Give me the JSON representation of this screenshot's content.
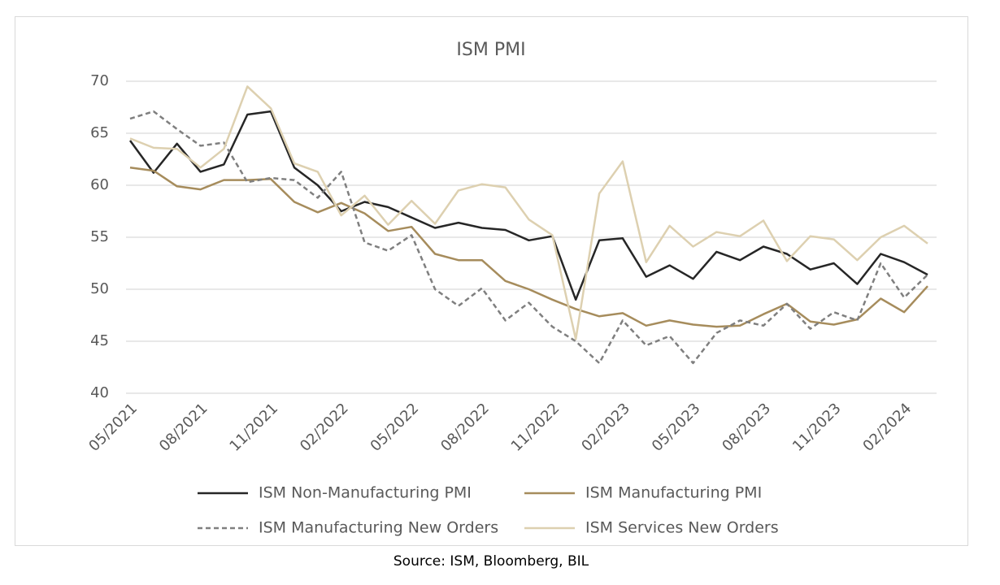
{
  "chart_data": {
    "type": "line",
    "title": "ISM PMI",
    "source": "Source: ISM, Bloomberg, BIL",
    "categories": [
      "05/2021",
      null,
      null,
      "08/2021",
      null,
      null,
      "11/2021",
      null,
      null,
      "02/2022",
      null,
      null,
      "05/2022",
      null,
      null,
      "08/2022",
      null,
      null,
      "11/2022",
      null,
      null,
      "02/2023",
      null,
      null,
      "05/2023",
      null,
      null,
      "08/2023",
      null,
      null,
      "11/2023",
      null,
      null,
      "02/2024",
      null
    ],
    "series": [
      {
        "name": "ISM Non-Manufacturing PMI",
        "color": "#262626",
        "dashed": false,
        "values": [
          64.3,
          61.2,
          64.0,
          61.3,
          62.0,
          66.8,
          67.1,
          61.7,
          60.0,
          57.5,
          58.4,
          57.9,
          56.9,
          55.9,
          56.4,
          55.9,
          55.7,
          54.7,
          55.1,
          49.0,
          54.7,
          54.9,
          51.2,
          52.3,
          51.0,
          53.6,
          52.8,
          54.1,
          53.4,
          51.9,
          52.5,
          50.5,
          53.4,
          52.6,
          51.4
        ]
      },
      {
        "name": "ISM Manufacturing PMI",
        "color": "#a68c5c",
        "dashed": false,
        "values": [
          61.7,
          61.4,
          59.9,
          59.6,
          60.5,
          60.5,
          60.6,
          58.4,
          57.4,
          58.3,
          57.3,
          55.6,
          56.0,
          53.4,
          52.8,
          52.8,
          50.8,
          50.0,
          49.0,
          48.1,
          47.4,
          47.7,
          46.5,
          47.0,
          46.6,
          46.4,
          46.5,
          47.6,
          48.6,
          46.9,
          46.6,
          47.1,
          49.1,
          47.8,
          50.3
        ]
      },
      {
        "name": "ISM Manufacturing New Orders",
        "color": "#7f7f7f",
        "dashed": true,
        "values": [
          66.4,
          67.1,
          65.4,
          63.8,
          64.1,
          60.3,
          60.7,
          60.5,
          58.8,
          61.3,
          54.5,
          53.7,
          55.2,
          50.0,
          48.4,
          50.1,
          47.0,
          48.7,
          46.4,
          45.0,
          42.9,
          47.0,
          44.6,
          45.5,
          42.9,
          45.8,
          47.0,
          46.5,
          48.6,
          46.2,
          47.8,
          47.0,
          52.5,
          49.2,
          51.4
        ]
      },
      {
        "name": "ISM Services New Orders",
        "color": "#ddd0b0",
        "dashed": false,
        "values": [
          64.5,
          63.6,
          63.5,
          61.7,
          63.5,
          69.5,
          67.4,
          62.1,
          61.3,
          57.1,
          59.0,
          56.2,
          58.5,
          56.3,
          59.5,
          60.1,
          59.8,
          56.7,
          55.2,
          45.2,
          59.2,
          62.3,
          52.6,
          56.1,
          54.1,
          55.5,
          55.1,
          56.6,
          52.7,
          55.1,
          54.8,
          52.8,
          55.0,
          56.1,
          54.4
        ]
      }
    ],
    "ylim": [
      40,
      70
    ],
    "yticks": [
      40,
      45,
      50,
      55,
      60,
      65,
      70
    ],
    "grid": true,
    "legend": "bottom"
  }
}
